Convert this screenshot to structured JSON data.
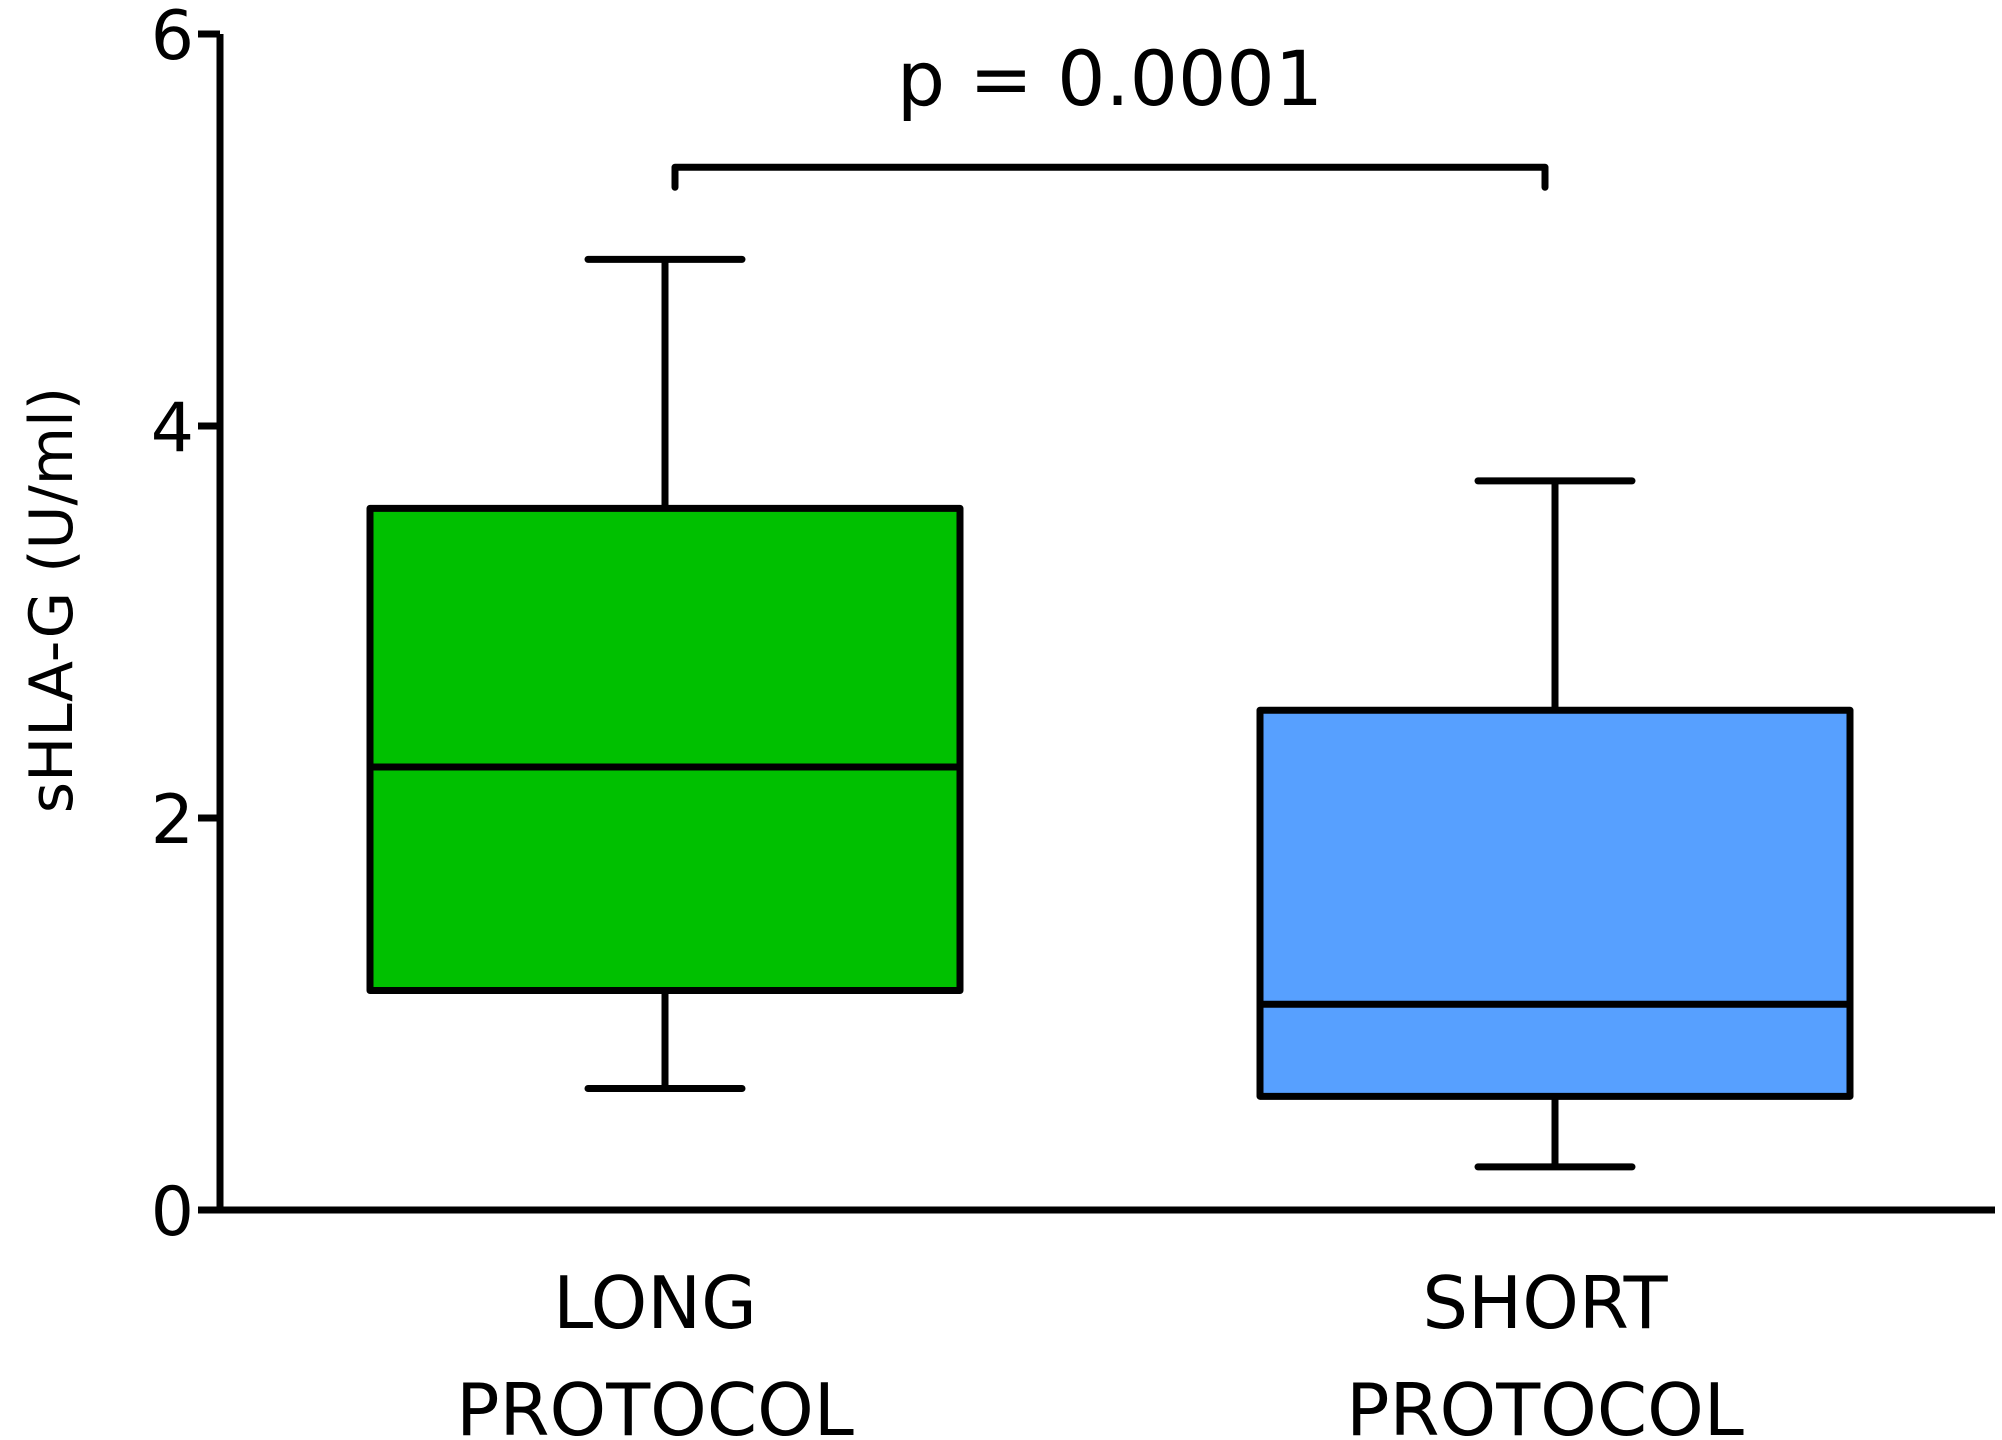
{
  "chart_data": {
    "type": "box",
    "ylabel": "sHLA-G (U/ml)",
    "ylim": [
      0,
      6
    ],
    "yticks": [
      0,
      2,
      4,
      6
    ],
    "grid": false,
    "legend": "none",
    "categories": [
      {
        "label_lines": [
          "LONG",
          "PROTOCOL"
        ]
      },
      {
        "label_lines": [
          "SHORT",
          "PROTOCOL"
        ]
      }
    ],
    "boxes": [
      {
        "whisker_low": 0.62,
        "q1": 1.12,
        "median": 2.26,
        "q3": 3.58,
        "whisker_high": 4.85,
        "color": "#00c000"
      },
      {
        "whisker_low": 0.22,
        "q1": 0.58,
        "median": 1.05,
        "q3": 2.55,
        "whisker_high": 3.72,
        "color": "#57a0ff"
      }
    ],
    "significance": {
      "text": "p = 0.0001",
      "y": 5.32,
      "from": 0,
      "to": 1
    }
  }
}
